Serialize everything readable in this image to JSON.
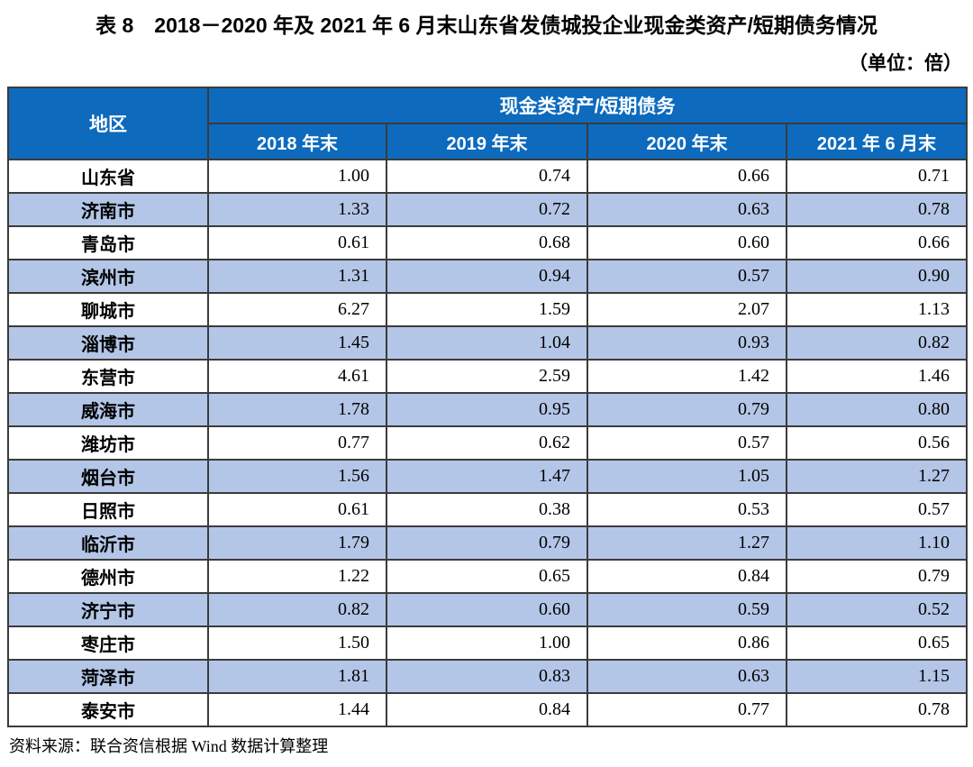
{
  "title": "表 8　2018－2020 年及 2021 年 6 月末山东省发债城投企业现金类资产/短期债务情况",
  "unit_label": "（单位：倍）",
  "table": {
    "region_header": "地区",
    "group_header": "现金类资产/短期债务",
    "column_headers": [
      "2018 年末",
      "2019 年末",
      "2020 年末",
      "2021 年 6 月末"
    ],
    "rows": [
      {
        "region": "山东省",
        "values": [
          "1.00",
          "0.74",
          "0.66",
          "0.71"
        ]
      },
      {
        "region": "济南市",
        "values": [
          "1.33",
          "0.72",
          "0.63",
          "0.78"
        ]
      },
      {
        "region": "青岛市",
        "values": [
          "0.61",
          "0.68",
          "0.60",
          "0.66"
        ]
      },
      {
        "region": "滨州市",
        "values": [
          "1.31",
          "0.94",
          "0.57",
          "0.90"
        ]
      },
      {
        "region": "聊城市",
        "values": [
          "6.27",
          "1.59",
          "2.07",
          "1.13"
        ]
      },
      {
        "region": "淄博市",
        "values": [
          "1.45",
          "1.04",
          "0.93",
          "0.82"
        ]
      },
      {
        "region": "东营市",
        "values": [
          "4.61",
          "2.59",
          "1.42",
          "1.46"
        ]
      },
      {
        "region": "威海市",
        "values": [
          "1.78",
          "0.95",
          "0.79",
          "0.80"
        ]
      },
      {
        "region": "潍坊市",
        "values": [
          "0.77",
          "0.62",
          "0.57",
          "0.56"
        ]
      },
      {
        "region": "烟台市",
        "values": [
          "1.56",
          "1.47",
          "1.05",
          "1.27"
        ]
      },
      {
        "region": "日照市",
        "values": [
          "0.61",
          "0.38",
          "0.53",
          "0.57"
        ]
      },
      {
        "region": "临沂市",
        "values": [
          "1.79",
          "0.79",
          "1.27",
          "1.10"
        ]
      },
      {
        "region": "德州市",
        "values": [
          "1.22",
          "0.65",
          "0.84",
          "0.79"
        ]
      },
      {
        "region": "济宁市",
        "values": [
          "0.82",
          "0.60",
          "0.59",
          "0.52"
        ]
      },
      {
        "region": "枣庄市",
        "values": [
          "1.50",
          "1.00",
          "0.86",
          "0.65"
        ]
      },
      {
        "region": "菏泽市",
        "values": [
          "1.81",
          "0.83",
          "0.63",
          "1.15"
        ]
      },
      {
        "region": "泰安市",
        "values": [
          "1.44",
          "0.84",
          "0.77",
          "0.78"
        ]
      }
    ]
  },
  "source_note": "资料来源：联合资信根据 Wind 数据计算整理",
  "colors": {
    "header_bg": "#0d6abd",
    "alt_row_bg": "#b4c6e7",
    "border": "#3b3b3b"
  }
}
